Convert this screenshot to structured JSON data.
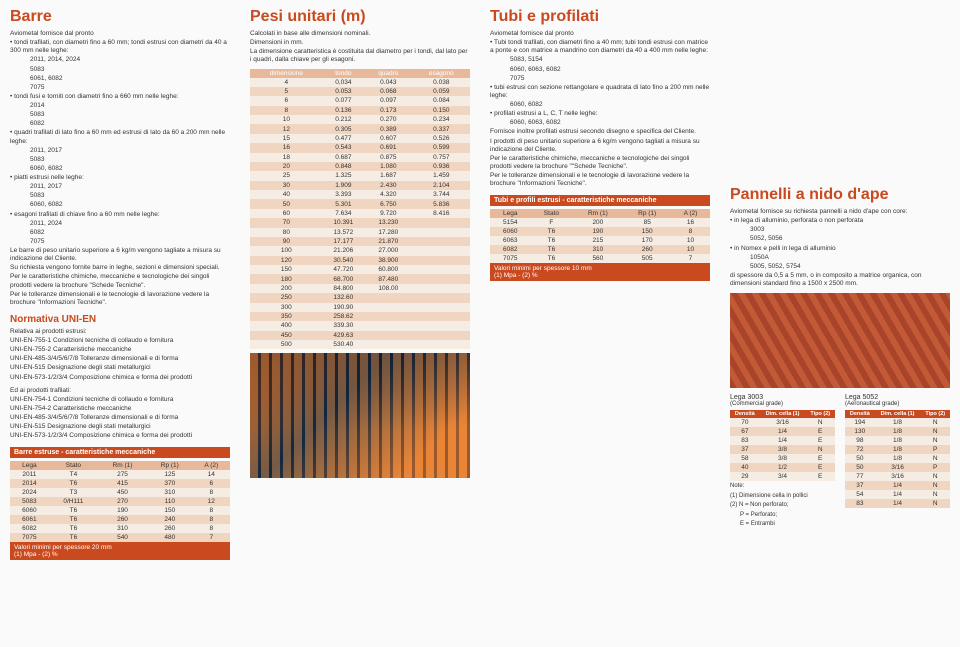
{
  "col1": {
    "title": "Barre",
    "l1": "Aviometal fornisce dal pronto",
    "b1": "tondi trafilati, con diametri fino a 60 mm; tondi estrusi con diametri da 40 a 300 mm nelle leghe:",
    "a1": "2011, 2014, 2024",
    "a2": "5083",
    "a3": "6061, 6082",
    "a4": "7075",
    "b2": "tondi fusi e torniti con diametri fino a 660 mm nelle leghe:",
    "a5": "2014",
    "a6": "5083",
    "a7": "6082",
    "b3": "quadri trafilati di lato fino a 60 mm ed estrusi di lato da 60 a 200 mm nelle leghe:",
    "a8": "2011, 2017",
    "a9": "5083",
    "a10": "6060, 6082",
    "b4": "piatti estrusi nelle leghe:",
    "a11": "2011, 2017",
    "a12": "5083",
    "a13": "6060, 6082",
    "b5": "esagoni trafilati di chiave fino a 60 mm nelle leghe:",
    "a14": "2011, 2024",
    "a15": "6082",
    "a16": "7075",
    "p1": "Le barre di peso unitario superiore a 6 kg/m vengono tagliate a misura su indicazione del Cliente.",
    "p2": "Su richiesta vengono fornite barre in leghe, sezioni e dimensioni speciali.",
    "p3": "Per le caratteristiche chimiche, meccaniche e tecnologiche dei singoli prodotti vedere la brochure \"Schede Tecniche\".",
    "p4": "Per le tolleranze dimensionali e le tecnologie di lavorazione vedere la brochure \"Informazioni Tecniche\".",
    "h2": "Normativa UNI-EN",
    "p5": "Relativa ai prodotti estrusi:",
    "n1": "UNI-EN-755-1 Condizioni tecniche di collaudo e fornitura",
    "n2": "UNI-EN-755-2 Caratteristiche meccaniche",
    "n3": "UNI-EN-485-3/4/5/6/7/8 Tolleranze dimensionali e di forma",
    "n4": "UNI-EN-515 Designazione degli stati metallurgici",
    "n5": "UNI-EN-573-1/2/3/4 Composizione chimica e forma dei prodotti",
    "p6": "Ed ai prodotti trafilati:",
    "n6": "UNI-EN-754-1 Condizioni tecniche di collaudo e fornitura",
    "n7": "UNI-EN-754-2 Caratteristiche meccaniche",
    "n8": "UNI-EN-485-3/4/5/6/7/8 Tolleranze dimensionali e di forma",
    "n9": "UNI-EN-515 Designazione degli stati metallurgici",
    "n10": "UNI-EN-573-1/2/3/4 Composizione chimica e forma dei prodotti",
    "tbl": {
      "title": "Barre estruse - caratteristiche meccaniche",
      "head": [
        "Lega",
        "Stato",
        "Rm (1)",
        "Rp (1)",
        "A (2)"
      ],
      "rows": [
        [
          "2011",
          "T4",
          "275",
          "125",
          "14"
        ],
        [
          "2014",
          "T6",
          "415",
          "370",
          "6"
        ],
        [
          "2024",
          "T3",
          "450",
          "310",
          "8"
        ],
        [
          "5083",
          "0/H111",
          "270",
          "110",
          "12"
        ],
        [
          "6060",
          "T6",
          "190",
          "150",
          "8"
        ],
        [
          "6061",
          "T6",
          "260",
          "240",
          "8"
        ],
        [
          "6082",
          "T6",
          "310",
          "260",
          "8"
        ],
        [
          "7075",
          "T6",
          "540",
          "480",
          "7"
        ]
      ],
      "foot1": "Valori minimi per spessore 20 mm",
      "foot2": "(1) Mpa - (2) %"
    }
  },
  "col2": {
    "title": "Pesi unitari (m)",
    "p1": "Calcolati in base alle dimensioni nominali.",
    "p2": "Dimensioni in mm.",
    "p3": "La dimensione caratteristica è costituita dal diametro per i tondi, dal lato per i quadri, dalla chiave per gli esagoni.",
    "tbl": {
      "head": [
        "dimensione",
        "tondo",
        "quadro",
        "esagono"
      ],
      "rows": [
        [
          "4",
          "0,034",
          "0.043",
          "0.038"
        ],
        [
          "5",
          "0.053",
          "0.068",
          "0.059"
        ],
        [
          "6",
          "0.077",
          "0.097",
          "0.084"
        ],
        [
          "8",
          "0.136",
          "0.173",
          "0.150"
        ],
        [
          "10",
          "0.212",
          "0.270",
          "0.234"
        ],
        [
          "12",
          "0.305",
          "0.389",
          "0.337"
        ],
        [
          "15",
          "0.477",
          "0.607",
          "0.526"
        ],
        [
          "16",
          "0.543",
          "0.691",
          "0.599"
        ],
        [
          "18",
          "0.687",
          "0.875",
          "0.757"
        ],
        [
          "20",
          "0.848",
          "1.080",
          "0.936"
        ],
        [
          "25",
          "1.325",
          "1.687",
          "1.459"
        ],
        [
          "30",
          "1.909",
          "2.430",
          "2.104"
        ],
        [
          "40",
          "3.393",
          "4.320",
          "3.744"
        ],
        [
          "50",
          "5.301",
          "6.750",
          "5.836"
        ],
        [
          "60",
          "7.634",
          "9.720",
          "8.416"
        ],
        [
          "70",
          "10.391",
          "13.230",
          ""
        ],
        [
          "80",
          "13.572",
          "17.280",
          ""
        ],
        [
          "90",
          "17.177",
          "21.870",
          ""
        ],
        [
          "100",
          "21.206",
          "27.000",
          ""
        ],
        [
          "120",
          "30.540",
          "38.900",
          ""
        ],
        [
          "150",
          "47.720",
          "60.800",
          ""
        ],
        [
          "180",
          "68.700",
          "87.480",
          ""
        ],
        [
          "200",
          "84.800",
          "108.00",
          ""
        ],
        [
          "250",
          "132.60",
          "",
          ""
        ],
        [
          "300",
          "190.90",
          "",
          ""
        ],
        [
          "350",
          "258.62",
          "",
          ""
        ],
        [
          "400",
          "339.30",
          "",
          ""
        ],
        [
          "450",
          "429.63",
          "",
          ""
        ],
        [
          "500",
          "530.40",
          "",
          ""
        ]
      ]
    }
  },
  "col3": {
    "title": "Tubi e profilati",
    "l1": "Aviometal fornisce dal pronto",
    "b1": "Tubi tondi trafilati, con diametri fino a 40 mm; tubi tondi estrusi con matrice a ponte e con matrice a mandrino con diametri da 40 a 400 mm nelle leghe:",
    "a1": "5083, 5154",
    "a2": "6060, 6063, 6082",
    "a3": "7075",
    "b2": "tubi estrusi con sezione rettangolare e quadrata di lato fino a 200 mm nelle leghe:",
    "a4": "6060, 6082",
    "b3": "profilati estrusi a L, C, T nelle leghe:",
    "a5": "6060, 6063, 6082",
    "p1": "Fornisce inoltre profilati estrusi secondo disegno e specifica del Cliente.",
    "p2": "I prodotti di peso unitario superiore a 6 kg/m vengono tagliati a misura su indicazione del Cliente.",
    "p3": "Per le caratteristiche chimiche, meccaniche e tecnologiche dei singoli prodotti vedere la brochure \"\"Schede Tecniche\".",
    "p4": "Per le tolleranze dimensionali e le tecnologie di lavorazione vedere la brochure \"Informazioni Tecniche\".",
    "tbl": {
      "title": "Tubi e profili estrusi - caratteristiche meccaniche",
      "head": [
        "Lega",
        "Stato",
        "Rm (1)",
        "Rp (1)",
        "A (2)"
      ],
      "rows": [
        [
          "5154",
          "F",
          "200",
          "85",
          "16"
        ],
        [
          "6060",
          "T6",
          "190",
          "150",
          "8"
        ],
        [
          "6063",
          "T6",
          "215",
          "170",
          "10"
        ],
        [
          "6082",
          "T6",
          "310",
          "260",
          "10"
        ],
        [
          "7075",
          "T6",
          "560",
          "505",
          "7"
        ]
      ],
      "foot1": "Valori minimi per spessore 10 mm",
      "foot2": "(1) Mpa - (2) %"
    }
  },
  "col4": {
    "title": "Pannelli a nido d'ape",
    "p1": "Aviometal fornisce su richiesta pannelli a nido d'ape con core:",
    "b1": "in lega di alluminio, perforata o non perforata",
    "a1": "3003",
    "a2": "5052, 5056",
    "b2": "in Nomex e pelli in lega di alluminio",
    "a3": "1050A",
    "a4": "5005, 5052, 5754",
    "p2": "di spessore da 0,5 a 5 mm, o in composito a matrice organica, con dimensioni standard fino a 1500 x 2500 mm.",
    "tblA": {
      "title": "Lega 3003",
      "sub": "(Commercial grade)",
      "head": [
        "Densità",
        "Dim. cella (1)",
        "Tipo (2)"
      ],
      "rows": [
        [
          "70",
          "3/16",
          "N"
        ],
        [
          "67",
          "1/4",
          "E"
        ],
        [
          "83",
          "1/4",
          "E"
        ],
        [
          "37",
          "3/8",
          "N"
        ],
        [
          "58",
          "3/8",
          "E"
        ],
        [
          "40",
          "1/2",
          "E"
        ],
        [
          "29",
          "3/4",
          "E"
        ]
      ]
    },
    "tblB": {
      "title": "Lega 5052",
      "sub": "(Aeronautical grade)",
      "head": [
        "Densità",
        "Dim. cella (1)",
        "Tipo (2)"
      ],
      "rows": [
        [
          "194",
          "1/8",
          "N"
        ],
        [
          "130",
          "1/8",
          "N"
        ],
        [
          "98",
          "1/8",
          "N"
        ],
        [
          "72",
          "1/8",
          "P"
        ],
        [
          "50",
          "1/8",
          "N"
        ],
        [
          "50",
          "3/16",
          "P"
        ],
        [
          "77",
          "3/16",
          "N"
        ],
        [
          "37",
          "1/4",
          "N"
        ],
        [
          "54",
          "1/4",
          "N"
        ],
        [
          "83",
          "1/4",
          "N"
        ]
      ]
    },
    "note1": "Note:",
    "note2": "(1) Dimensione cella in pollici",
    "note3": "(2) N = Non perforato;",
    "note4": "P = Perforato;",
    "note5": "E = Entrambi"
  }
}
